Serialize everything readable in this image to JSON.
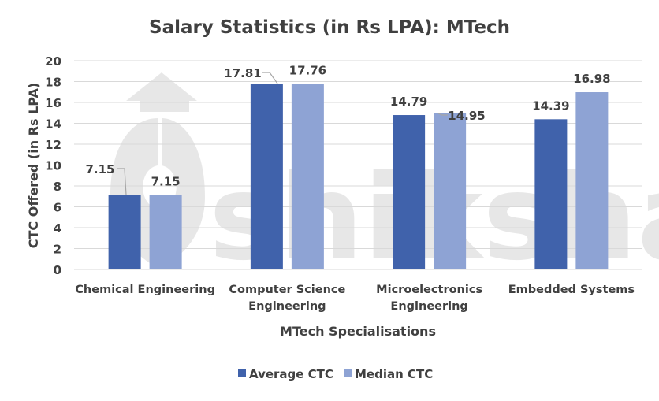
{
  "chart_data": {
    "type": "bar",
    "title": "Salary Statistics (in Rs LPA): MTech",
    "xlabel": "MTech Specialisations",
    "ylabel": "CTC Offered (in Rs LPA)",
    "ylim": [
      0,
      20
    ],
    "yticks": [
      0,
      2,
      4,
      6,
      8,
      10,
      12,
      14,
      16,
      18,
      20
    ],
    "grid": true,
    "legend_placement": "bottom",
    "categories": [
      [
        "Chemical Engineering"
      ],
      [
        "Computer Science",
        "Engineering"
      ],
      [
        "Microelectronics",
        "Engineering"
      ],
      [
        "Embedded Systems"
      ]
    ],
    "series": [
      {
        "name": "Average CTC",
        "color": "#4062ab",
        "values": [
          7.15,
          17.81,
          14.79,
          14.39
        ]
      },
      {
        "name": "Median CTC",
        "color": "#8ea3d4",
        "values": [
          7.15,
          17.76,
          14.95,
          16.98
        ]
      }
    ],
    "watermark": "shiksha"
  }
}
